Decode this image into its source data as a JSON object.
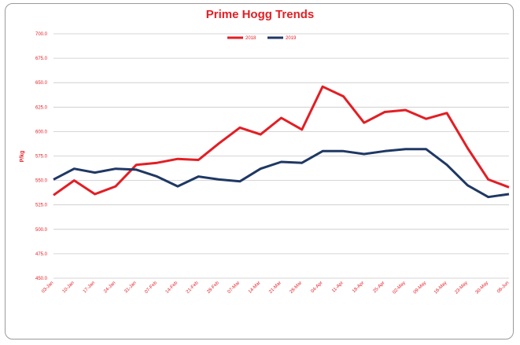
{
  "chart_data": {
    "type": "line",
    "title": "Prime Hogg Trends",
    "xlabel": "",
    "ylabel": "P/kg",
    "ylim": [
      450,
      700
    ],
    "yticks": [
      "450.0",
      "475.0",
      "500.0",
      "525.0",
      "550.0",
      "575.0",
      "600.0",
      "625.0",
      "650.0",
      "675.0",
      "700.0"
    ],
    "grid": true,
    "legend_position": "top-center",
    "categories": [
      "03-Jan",
      "10-Jan",
      "17-Jan",
      "24-Jan",
      "31-Jan",
      "07-Feb",
      "14-Feb",
      "21-Feb",
      "28-Feb",
      "07-Mar",
      "14-Mar",
      "21-Mar",
      "28-Mar",
      "04-Apr",
      "11-Apr",
      "18-Apr",
      "25-Apr",
      "02-May",
      "09-May",
      "16-May",
      "23-May",
      "30-May",
      "06-Jun"
    ],
    "series": [
      {
        "name": "2018",
        "color": "#e31e24",
        "values": [
          535,
          550,
          536,
          544,
          566,
          568,
          572,
          571,
          588,
          604,
          597,
          614,
          602,
          646,
          636,
          609,
          620,
          622,
          613,
          619,
          583,
          551,
          543
        ]
      },
      {
        "name": "2019",
        "color": "#1f3864",
        "values": [
          551,
          562,
          558,
          562,
          561,
          554,
          544,
          554,
          551,
          549,
          562,
          569,
          568,
          580,
          580,
          577,
          580,
          582,
          582,
          566,
          545,
          533,
          536
        ]
      }
    ]
  }
}
